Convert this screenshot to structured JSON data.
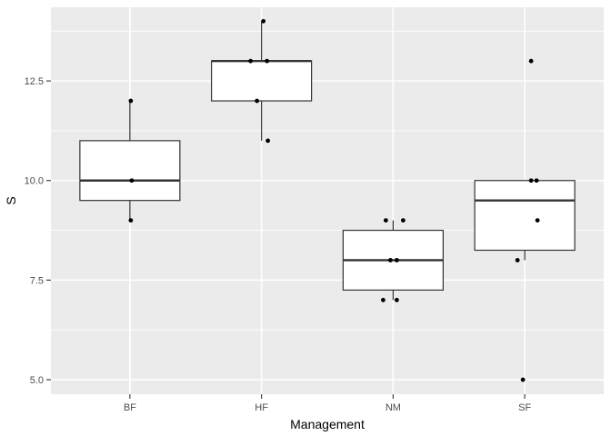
{
  "chart_data": {
    "type": "boxplot",
    "title": "",
    "xlabel": "Management",
    "ylabel": "S",
    "categories": [
      "BF",
      "HF",
      "NM",
      "SF"
    ],
    "ylim": [
      4.635,
      14.35
    ],
    "y_ticks": [
      5.0,
      7.5,
      10.0,
      12.5
    ],
    "y_tick_labels": [
      "5.0",
      "7.5",
      "10.0",
      "12.5"
    ],
    "y_minor_ticks": [
      6.25,
      8.75,
      11.25,
      13.75
    ],
    "grid": "major-and-minor",
    "legend": "none",
    "series": [
      {
        "label": "BF",
        "whisker_low": 9,
        "q1": 9.5,
        "median": 10,
        "q3": 11,
        "whisker_high": 12,
        "outliers": [],
        "points": [
          {
            "v": 12,
            "dx": 1
          },
          {
            "v": 10,
            "dx": 2
          },
          {
            "v": 9,
            "dx": 1
          }
        ]
      },
      {
        "label": "HF",
        "whisker_low": 11,
        "q1": 12,
        "median": 13,
        "q3": 13,
        "whisker_high": 14,
        "outliers": [],
        "points": [
          {
            "v": 14,
            "dx": 2
          },
          {
            "v": 13,
            "dx": -12
          },
          {
            "v": 13,
            "dx": 6
          },
          {
            "v": 12,
            "dx": -5
          },
          {
            "v": 11,
            "dx": 7
          }
        ]
      },
      {
        "label": "NM",
        "whisker_low": 7,
        "q1": 7.25,
        "median": 8,
        "q3": 8.75,
        "whisker_high": 9,
        "outliers": [],
        "points": [
          {
            "v": 9,
            "dx": -8
          },
          {
            "v": 9,
            "dx": 11
          },
          {
            "v": 8,
            "dx": -3
          },
          {
            "v": 8,
            "dx": 4
          },
          {
            "v": 7,
            "dx": -11
          },
          {
            "v": 7,
            "dx": 4
          }
        ]
      },
      {
        "label": "SF",
        "whisker_low": 8,
        "q1": 8.25,
        "median": 9.5,
        "q3": 10,
        "whisker_high": 10,
        "outliers": [
          13,
          5
        ],
        "points": [
          {
            "v": 13,
            "dx": 7
          },
          {
            "v": 10,
            "dx": 7
          },
          {
            "v": 10,
            "dx": 13
          },
          {
            "v": 9,
            "dx": 14
          },
          {
            "v": 8,
            "dx": -8
          },
          {
            "v": 5,
            "dx": -2
          }
        ]
      }
    ],
    "colors": {
      "panel_bg": "#EBEBEB",
      "grid": "#FFFFFF",
      "box_fill": "#FFFFFF",
      "box_stroke": "#333333",
      "point": "#000000",
      "tick_mark": "#333333",
      "tick_label": "#4D4D4D",
      "axis_title": "#000000",
      "outer_bg": "#FFFFFF"
    }
  }
}
